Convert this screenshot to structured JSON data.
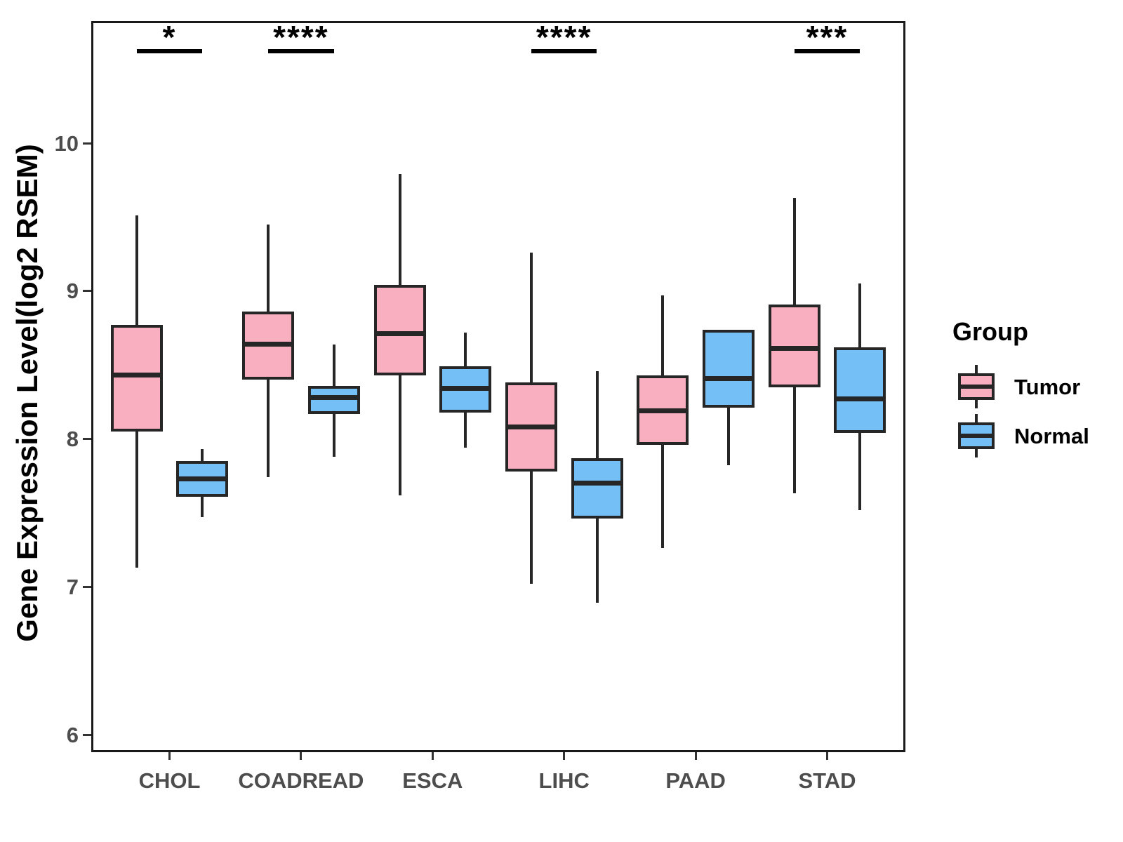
{
  "chart_data": {
    "type": "boxplot",
    "title": "",
    "xlabel": "",
    "ylabel": "Gene Expression Level(log2 RSEM)",
    "y_axis": {
      "ticks": [
        6,
        7,
        8,
        9,
        10
      ],
      "shown_range": [
        5.88,
        10.83
      ],
      "grid": false
    },
    "categories": [
      "CHOL",
      "COADREAD",
      "ESCA",
      "LIHC",
      "PAAD",
      "STAD"
    ],
    "groups": [
      {
        "name": "Tumor",
        "fill": "#FAAFC1"
      },
      {
        "name": "Normal",
        "fill": "#74BFF5"
      }
    ],
    "series": [
      {
        "name": "Tumor",
        "stat_format": [
          "min",
          "q1",
          "median",
          "q3",
          "max"
        ],
        "boxes": [
          [
            7.13,
            8.05,
            8.43,
            8.77,
            9.51
          ],
          [
            7.74,
            8.4,
            8.64,
            8.86,
            9.45
          ],
          [
            7.62,
            8.43,
            8.71,
            9.04,
            9.79
          ],
          [
            7.02,
            7.78,
            8.08,
            8.38,
            9.26
          ],
          [
            7.26,
            7.96,
            8.19,
            8.43,
            8.97
          ],
          [
            7.63,
            8.35,
            8.61,
            8.91,
            9.63
          ]
        ]
      },
      {
        "name": "Normal",
        "stat_format": [
          "min",
          "q1",
          "median",
          "q3",
          "max"
        ],
        "boxes": [
          [
            7.47,
            7.61,
            7.73,
            7.85,
            7.93
          ],
          [
            7.88,
            8.17,
            8.28,
            8.36,
            8.64
          ],
          [
            7.94,
            8.18,
            8.34,
            8.49,
            8.72
          ],
          [
            6.89,
            7.46,
            7.7,
            7.87,
            8.46
          ],
          [
            7.82,
            8.21,
            8.41,
            8.74,
            8.74
          ],
          [
            7.52,
            8.04,
            8.27,
            8.62,
            9.05
          ]
        ]
      }
    ],
    "significance": [
      {
        "category": "CHOL",
        "label": "*"
      },
      {
        "category": "COADREAD",
        "label": "****"
      },
      {
        "category": "LIHC",
        "label": "****"
      },
      {
        "category": "STAD",
        "label": "***"
      }
    ],
    "legend": {
      "title": "Group",
      "position": "right",
      "items": [
        "Tumor",
        "Normal"
      ]
    }
  },
  "colors": {
    "tumor_fill": "#FAAFC1",
    "normal_fill": "#74BFF5",
    "box_border": "#262626",
    "panel_border": "#1A1A1A",
    "axis_text": "#4D4D4D",
    "annotation": "#000000",
    "background": "#FFFFFF"
  }
}
